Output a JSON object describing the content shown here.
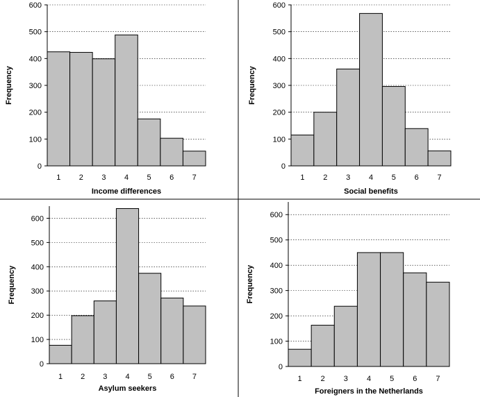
{
  "chart_data": [
    {
      "type": "bar",
      "categories": [
        "1",
        "2",
        "3",
        "4",
        "5",
        "6",
        "7"
      ],
      "values": [
        425,
        423,
        399,
        488,
        175,
        103,
        55
      ],
      "title": "",
      "xlabel": "Income differences",
      "ylabel": "Frequency",
      "ylim": [
        0,
        600
      ],
      "yticks": [
        "0",
        "100",
        "200",
        "300",
        "400",
        "500",
        "600"
      ],
      "grid": true,
      "legend": "none"
    },
    {
      "type": "bar",
      "categories": [
        "1",
        "2",
        "3",
        "4",
        "5",
        "6",
        "7"
      ],
      "values": [
        115,
        200,
        361,
        568,
        296,
        139,
        56
      ],
      "title": "",
      "xlabel": "Social benefits",
      "ylabel": "Frequency",
      "ylim": [
        0,
        600
      ],
      "yticks": [
        "0",
        "100",
        "200",
        "300",
        "400",
        "500",
        "600"
      ],
      "grid": true,
      "legend": "none"
    },
    {
      "type": "bar",
      "categories": [
        "1",
        "2",
        "3",
        "4",
        "5",
        "6",
        "7"
      ],
      "values": [
        76,
        198,
        259,
        640,
        373,
        271,
        238
      ],
      "title": "",
      "xlabel": "Asylum seekers",
      "ylabel": "Frequency",
      "ylim": [
        0,
        650
      ],
      "yticks": [
        "0",
        "100",
        "200",
        "300",
        "400",
        "500",
        "600"
      ],
      "grid": true,
      "legend": "none"
    },
    {
      "type": "bar",
      "categories": [
        "1",
        "2",
        "3",
        "4",
        "5",
        "6",
        "7"
      ],
      "values": [
        68,
        163,
        238,
        450,
        450,
        370,
        333
      ],
      "title": "",
      "xlabel": "Foreigners in the Netherlands",
      "ylabel": "Frequency",
      "ylim": [
        0,
        650
      ],
      "yticks": [
        "0",
        "100",
        "200",
        "300",
        "400",
        "500",
        "600"
      ],
      "grid": true,
      "legend": "none"
    }
  ],
  "colors": {
    "bar_fill": "#c0c0c0",
    "bar_stroke": "#000000",
    "background": "#ffffff"
  }
}
